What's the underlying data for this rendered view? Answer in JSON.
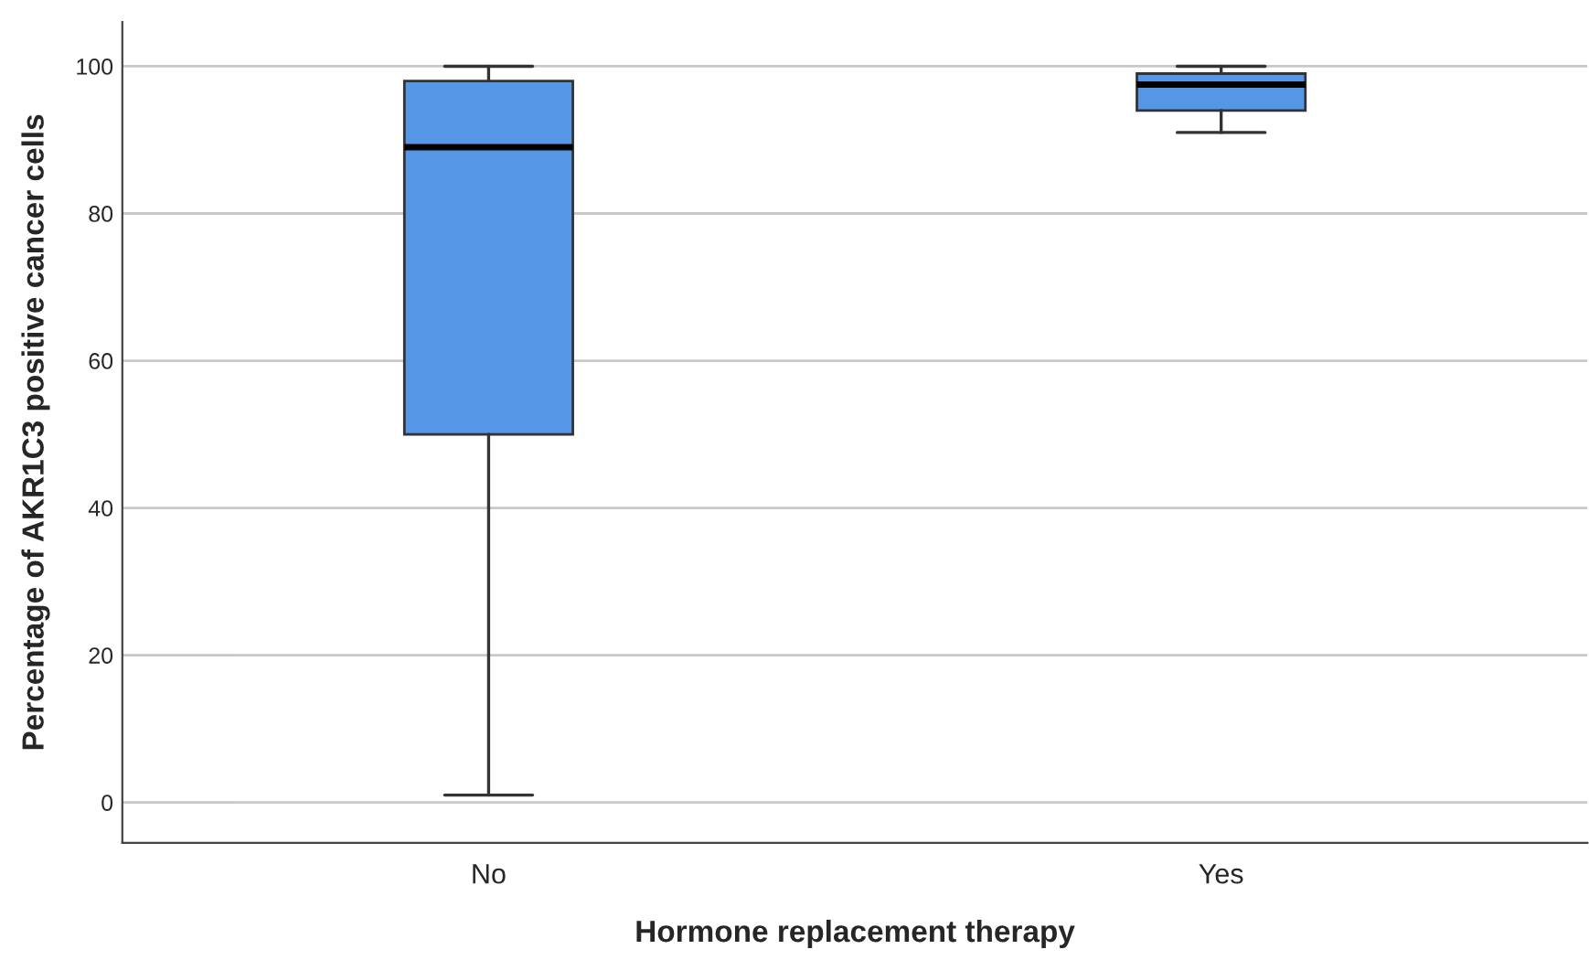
{
  "chart_data": {
    "type": "box",
    "xlabel": "Hormone replacement therapy",
    "ylabel": "Percentage of AKR1C3 positive cancer cells",
    "categories": [
      "No",
      "Yes"
    ],
    "color": "#5596e6",
    "boxes": [
      {
        "low": 1,
        "q1": 50,
        "median": 89,
        "q3": 98,
        "high": 100
      },
      {
        "low": 91,
        "q1": 94,
        "median": 97.5,
        "q3": 99,
        "high": 100
      }
    ],
    "ylim": [
      -5.5,
      106
    ],
    "yticks": [
      0,
      20,
      40,
      60,
      80,
      100
    ],
    "grid": "y"
  }
}
